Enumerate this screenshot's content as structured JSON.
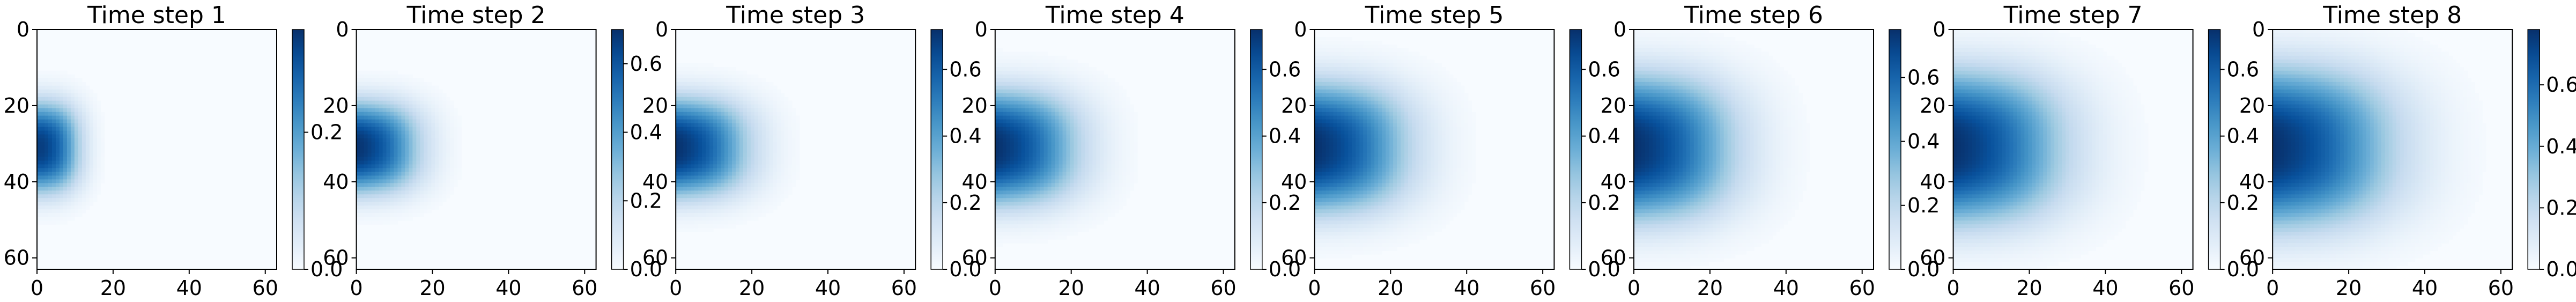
{
  "figure": {
    "colormap": "Blues",
    "colormap_stops": [
      "#f7fbff",
      "#deebf7",
      "#c6dbef",
      "#9ecae1",
      "#6baed6",
      "#4292c6",
      "#2171b5",
      "#08519c",
      "#08306b"
    ]
  },
  "chart_data": [
    {
      "type": "heatmap",
      "title": "Time step 1",
      "xlim": [
        0,
        63
      ],
      "ylim": [
        63,
        0
      ],
      "x_ticks": [
        0,
        20,
        40,
        60
      ],
      "y_ticks": [
        0,
        20,
        40,
        60
      ],
      "grid": false,
      "colorbar": {
        "range": [
          0,
          0.35
        ],
        "ticks": [
          0.0,
          0.2
        ],
        "tick_labels": [
          "0.0",
          "0.2"
        ]
      },
      "blob": {
        "center_x": 3,
        "center_y": 31,
        "peak": 0.35,
        "extent_x": 9,
        "extent_y": 12
      }
    },
    {
      "type": "heatmap",
      "title": "Time step 2",
      "xlim": [
        0,
        63
      ],
      "ylim": [
        63,
        0
      ],
      "x_ticks": [
        0,
        20,
        40,
        60
      ],
      "y_ticks": [
        0,
        20,
        40,
        60
      ],
      "grid": false,
      "colorbar": {
        "range": [
          0,
          0.7
        ],
        "ticks": [
          0.0,
          0.2,
          0.4,
          0.6
        ],
        "tick_labels": [
          "0.0",
          "0.2",
          "0.4",
          "0.6"
        ]
      },
      "blob": {
        "center_x": 3,
        "center_y": 31,
        "peak": 0.7,
        "extent_x": 15,
        "extent_y": 12
      }
    },
    {
      "type": "heatmap",
      "title": "Time step 3",
      "xlim": [
        0,
        63
      ],
      "ylim": [
        63,
        0
      ],
      "x_ticks": [
        0,
        20,
        40,
        60
      ],
      "y_ticks": [
        0,
        20,
        40,
        60
      ],
      "grid": false,
      "colorbar": {
        "range": [
          0,
          0.72
        ],
        "ticks": [
          0.0,
          0.2,
          0.4,
          0.6
        ],
        "tick_labels": [
          "0.0",
          "0.2",
          "0.4",
          "0.6"
        ]
      },
      "blob": {
        "center_x": 3,
        "center_y": 31,
        "peak": 0.72,
        "extent_x": 18,
        "extent_y": 13
      }
    },
    {
      "type": "heatmap",
      "title": "Time step 4",
      "xlim": [
        0,
        63
      ],
      "ylim": [
        63,
        0
      ],
      "x_ticks": [
        0,
        20,
        40,
        60
      ],
      "y_ticks": [
        0,
        20,
        40,
        60
      ],
      "grid": false,
      "colorbar": {
        "range": [
          0,
          0.72
        ],
        "ticks": [
          0.0,
          0.2,
          0.4,
          0.6
        ],
        "tick_labels": [
          "0.0",
          "0.2",
          "0.4",
          "0.6"
        ]
      },
      "blob": {
        "center_x": 3,
        "center_y": 31,
        "peak": 0.72,
        "extent_x": 21,
        "extent_y": 15
      }
    },
    {
      "type": "heatmap",
      "title": "Time step 5",
      "xlim": [
        0,
        63
      ],
      "ylim": [
        63,
        0
      ],
      "x_ticks": [
        0,
        20,
        40,
        60
      ],
      "y_ticks": [
        0,
        20,
        40,
        60
      ],
      "grid": false,
      "colorbar": {
        "range": [
          0,
          0.72
        ],
        "ticks": [
          0.0,
          0.2,
          0.4,
          0.6
        ],
        "tick_labels": [
          "0.0",
          "0.2",
          "0.4",
          "0.6"
        ]
      },
      "blob": {
        "center_x": 3,
        "center_y": 31,
        "peak": 0.72,
        "extent_x": 24,
        "extent_y": 17
      }
    },
    {
      "type": "heatmap",
      "title": "Time step 6",
      "xlim": [
        0,
        63
      ],
      "ylim": [
        63,
        0
      ],
      "x_ticks": [
        0,
        20,
        40,
        60
      ],
      "y_ticks": [
        0,
        20,
        40,
        60
      ],
      "grid": false,
      "colorbar": {
        "range": [
          0,
          0.75
        ],
        "ticks": [
          0.0,
          0.2,
          0.4,
          0.6
        ],
        "tick_labels": [
          "0.0",
          "0.2",
          "0.4",
          "0.6"
        ]
      },
      "blob": {
        "center_x": 3,
        "center_y": 31,
        "peak": 0.75,
        "extent_x": 26,
        "extent_y": 19
      }
    },
    {
      "type": "heatmap",
      "title": "Time step 7",
      "xlim": [
        0,
        63
      ],
      "ylim": [
        63,
        0
      ],
      "x_ticks": [
        0,
        20,
        40,
        60
      ],
      "y_ticks": [
        0,
        20,
        40,
        60
      ],
      "grid": false,
      "colorbar": {
        "range": [
          0,
          0.72
        ],
        "ticks": [
          0.0,
          0.2,
          0.4,
          0.6
        ],
        "tick_labels": [
          "0.0",
          "0.2",
          "0.4",
          "0.6"
        ]
      },
      "blob": {
        "center_x": 3,
        "center_y": 31,
        "peak": 0.72,
        "extent_x": 29,
        "extent_y": 20
      }
    },
    {
      "type": "heatmap",
      "title": "Time step 8",
      "xlim": [
        0,
        63
      ],
      "ylim": [
        63,
        0
      ],
      "x_ticks": [
        0,
        20,
        40,
        60
      ],
      "y_ticks": [
        0,
        20,
        40,
        60
      ],
      "grid": false,
      "colorbar": {
        "range": [
          0,
          0.78
        ],
        "ticks": [
          0.0,
          0.2,
          0.4,
          0.6
        ],
        "tick_labels": [
          "0.0",
          "0.2",
          "0.4",
          "0.6"
        ]
      },
      "blob": {
        "center_x": 3,
        "center_y": 31,
        "peak": 0.78,
        "extent_x": 32,
        "extent_y": 21
      }
    }
  ]
}
